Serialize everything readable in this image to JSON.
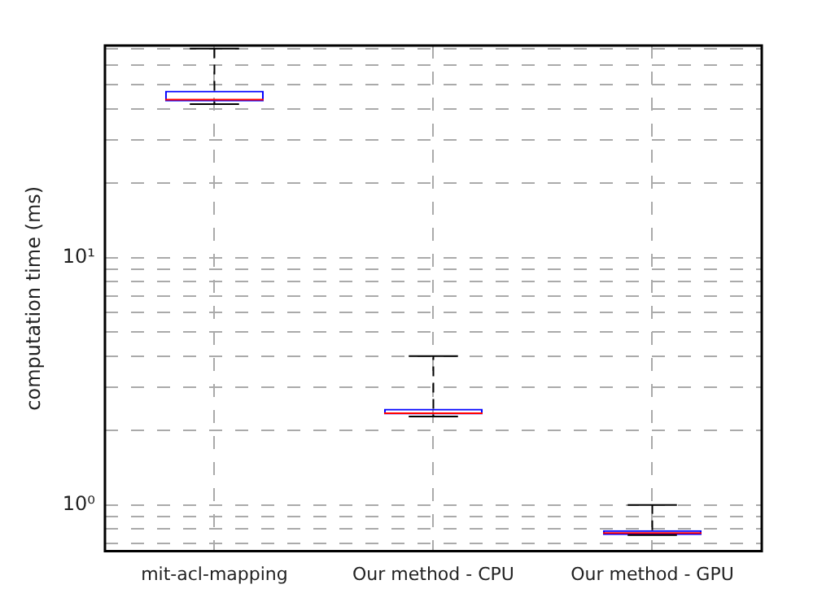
{
  "chart_data": {
    "type": "box",
    "ylabel": "computation time (ms)",
    "categories": [
      "mit-acl-mapping",
      "Our method - CPU",
      "Our method - GPU"
    ],
    "series": [
      {
        "color": "#0000ff",
        "boxes": [
          {
            "low": 41.7,
            "q1": 42.8,
            "median": 43.5,
            "q3": 47.3,
            "high": 70
          },
          {
            "low": 2.28,
            "q1": 2.32,
            "median": 2.35,
            "q3": 2.45,
            "high": 4.0
          },
          {
            "low": 0.755,
            "q1": 0.755,
            "median": 0.77,
            "q3": 0.79,
            "high": 1.0
          }
        ]
      }
    ],
    "log": "y",
    "ylim": [
      0.65,
      72
    ],
    "yticks": [
      {
        "value": 0.7,
        "label": null
      },
      {
        "value": 0.8,
        "label": null
      },
      {
        "value": 0.9,
        "label": null
      },
      {
        "value": 1,
        "label": "10⁰"
      },
      {
        "value": 2,
        "label": null
      },
      {
        "value": 3,
        "label": null
      },
      {
        "value": 4,
        "label": null
      },
      {
        "value": 5,
        "label": null
      },
      {
        "value": 6,
        "label": null
      },
      {
        "value": 7,
        "label": null
      },
      {
        "value": 8,
        "label": null
      },
      {
        "value": 9,
        "label": null
      },
      {
        "value": 10,
        "label": "10¹"
      },
      {
        "value": 20,
        "label": null
      },
      {
        "value": 30,
        "label": null
      },
      {
        "value": 40,
        "label": null
      },
      {
        "value": 50,
        "label": null
      },
      {
        "value": 60,
        "label": null
      },
      {
        "value": 70,
        "label": null
      }
    ],
    "grid": true
  }
}
